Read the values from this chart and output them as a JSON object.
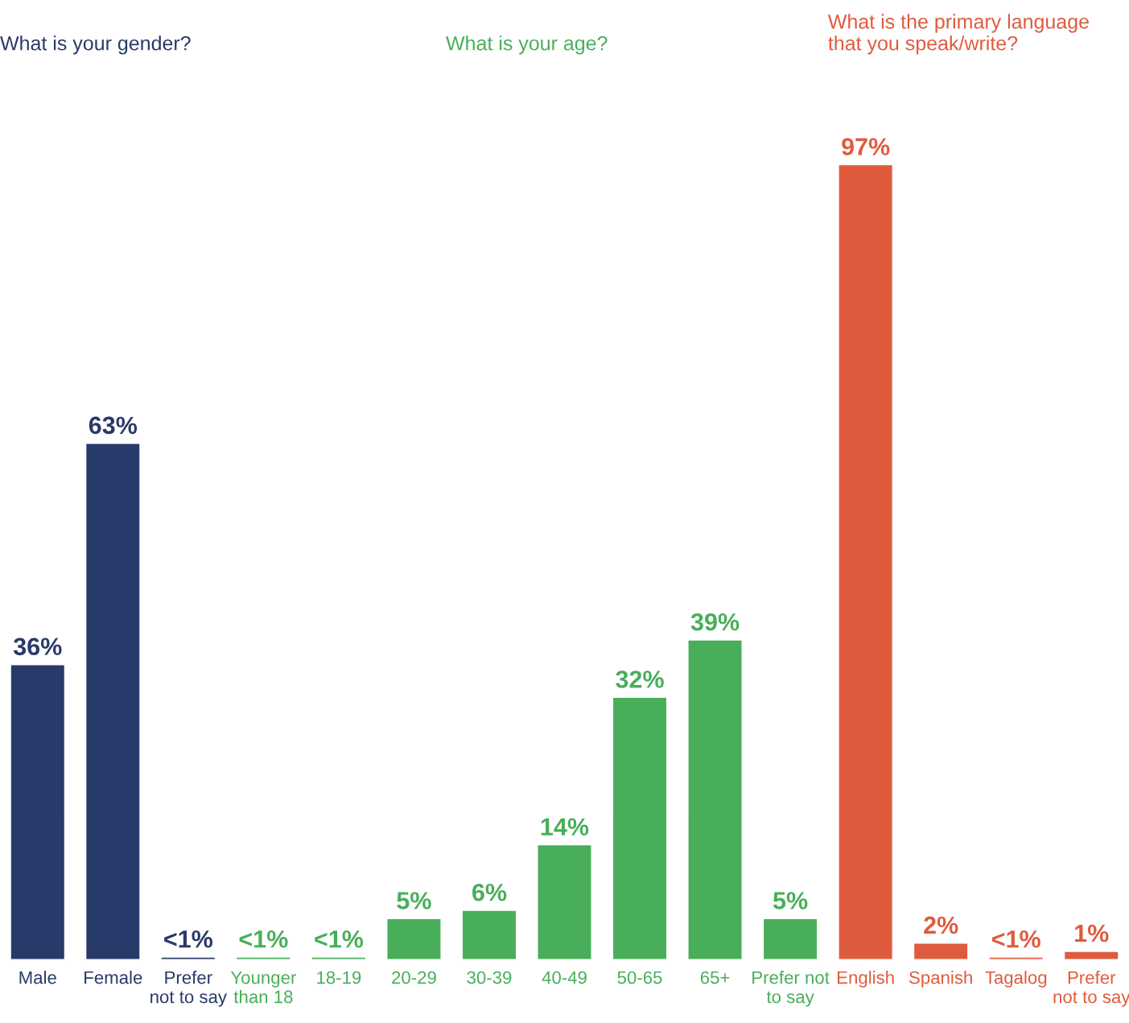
{
  "chart_data": [
    {
      "type": "bar",
      "title": "What is your gender?",
      "categories": [
        "Male",
        "Female",
        "Prefer\nnot to say"
      ],
      "series": [
        {
          "color": "#283a69",
          "values": [
            36,
            63,
            0.3
          ],
          "value_labels": [
            "36%",
            "63%",
            "<1%"
          ]
        }
      ]
    },
    {
      "type": "bar",
      "title": "What is your age?",
      "categories": [
        "Younger\nthan 18",
        "18-19",
        "20-29",
        "30-39",
        "40-49",
        "50-65",
        "65+",
        "Prefer not\nto say"
      ],
      "series": [
        {
          "color": "#48ae5a",
          "values": [
            0.3,
            0.3,
            5,
            6,
            14,
            32,
            39,
            5
          ],
          "value_labels": [
            "<1%",
            "<1%",
            "5%",
            "6%",
            "14%",
            "32%",
            "39%",
            "5%"
          ]
        }
      ]
    },
    {
      "type": "bar",
      "title": "What is the primary language\nthat you speak/write?",
      "categories": [
        "English",
        "Spanish",
        "Tagalog",
        "Prefer\nnot to say"
      ],
      "series": [
        {
          "color": "#df5b3d",
          "values": [
            97,
            2,
            0.3,
            1
          ],
          "value_labels": [
            "97%",
            "2%",
            "<1%",
            "1%"
          ]
        }
      ]
    }
  ]
}
